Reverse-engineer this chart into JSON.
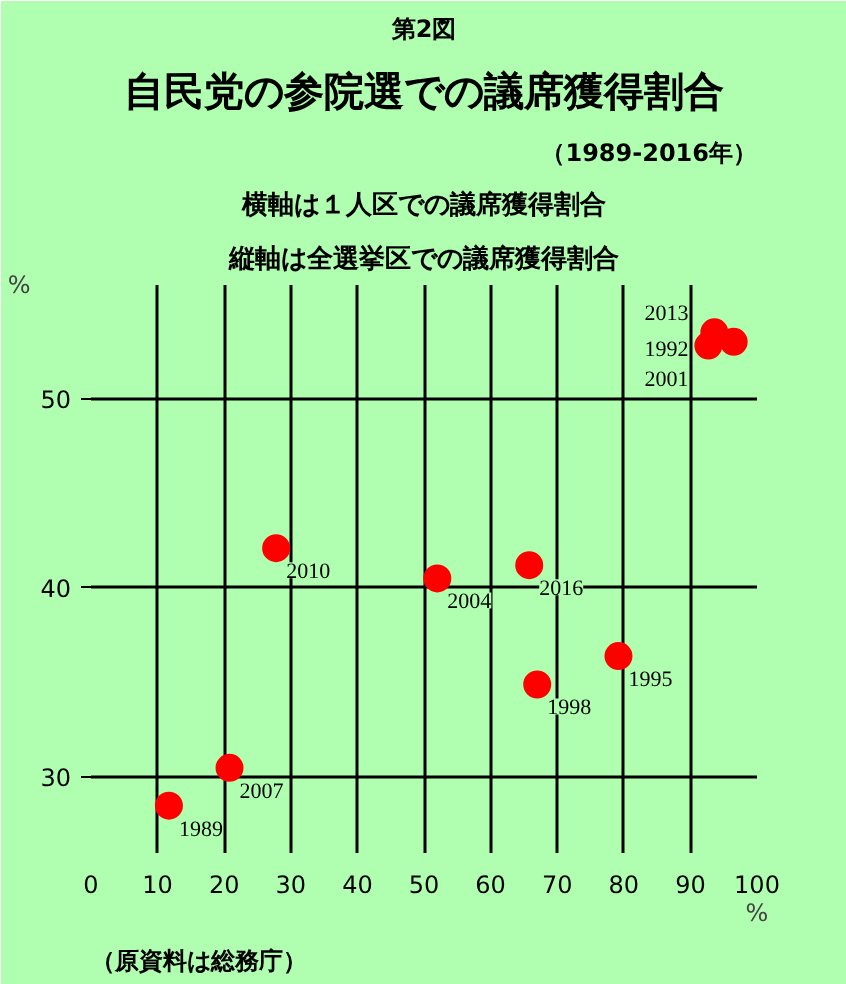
{
  "chart_data": {
    "type": "scatter",
    "title": "自民党の参院選での議席獲得割合",
    "subtitle": "（1989-2016年）",
    "annotations": [
      "第2図",
      "横軸は１人区での議席獲得割合",
      "縦軸は全選挙区での議席獲得割合",
      "（原資料は総務庁）"
    ],
    "xlabel": "%",
    "ylabel": "%",
    "x": [
      11.7,
      20.8,
      27.8,
      52.0,
      65.8,
      67.0,
      79.2,
      93.6,
      92.7,
      96.5
    ],
    "series": [
      {
        "color": "#ff0000",
        "values": [
          28.5,
          30.5,
          42.1,
          40.5,
          41.2,
          34.9,
          36.4,
          53.5,
          52.8,
          53.0
        ]
      }
    ],
    "value_labels": [
      "1989",
      "2007",
      "2010",
      "2004",
      "2016",
      "1998",
      "1995",
      "2013",
      "2001",
      "1992"
    ],
    "xlim": [
      0,
      100
    ],
    "ylim": [
      26,
      56
    ],
    "xticks": [
      0,
      10,
      20,
      30,
      40,
      50,
      60,
      70,
      80,
      90,
      100
    ],
    "yticks": [
      30,
      40,
      50
    ],
    "grid": true,
    "marker": "circle"
  }
}
